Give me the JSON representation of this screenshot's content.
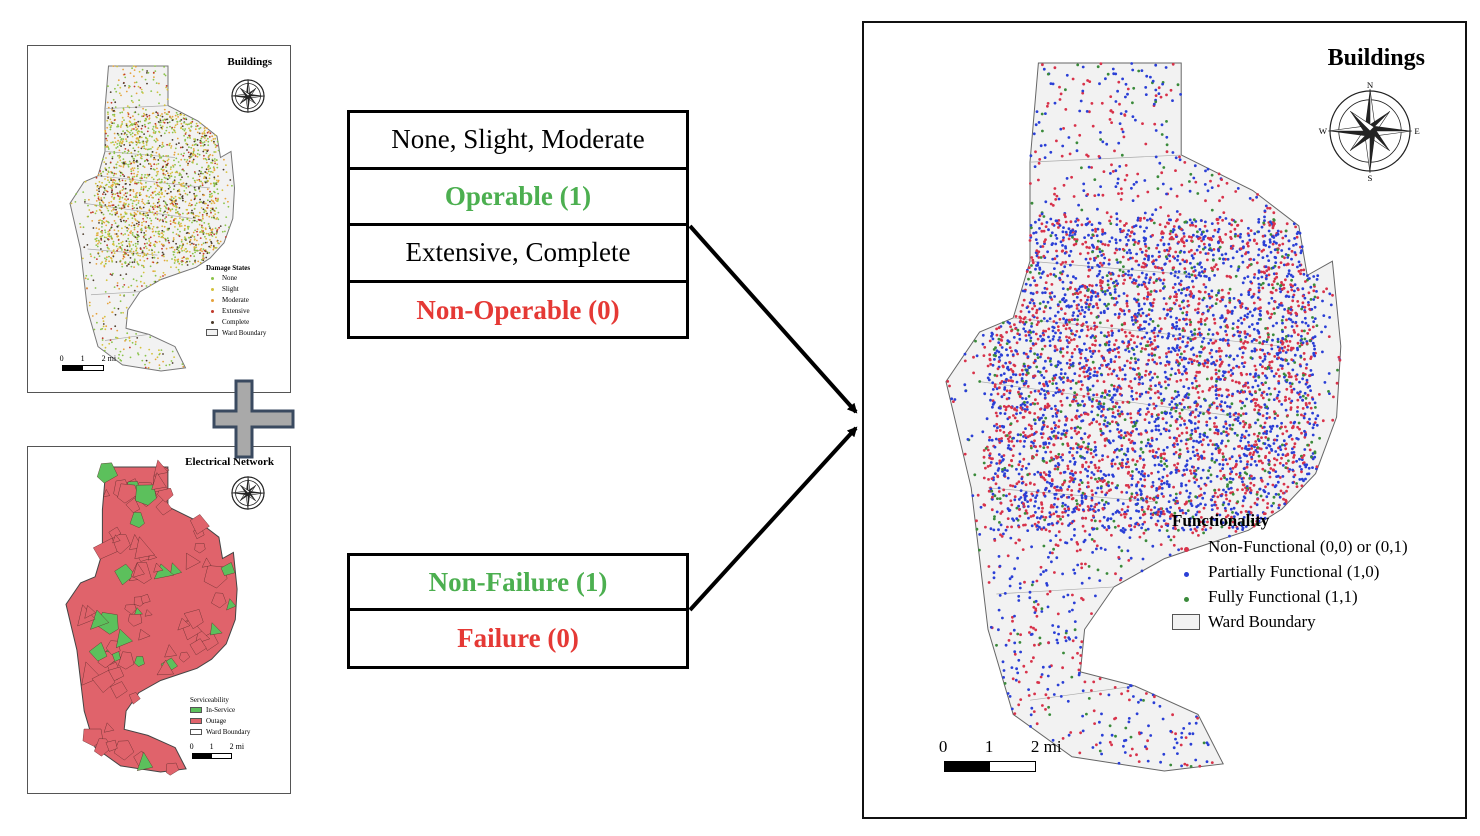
{
  "small_buildings_map": {
    "title": "Buildings",
    "legend_title": "Damage States",
    "legend_items": [
      {
        "label": "None",
        "color": "#8bc34a"
      },
      {
        "label": "Slight",
        "color": "#d4c23c"
      },
      {
        "label": "Moderate",
        "color": "#e6a23c"
      },
      {
        "label": "Extensive",
        "color": "#c0392b"
      },
      {
        "label": "Complete",
        "color": "#4a3a2a"
      },
      {
        "label": "Ward Boundary",
        "color": "#f2f2f2"
      }
    ],
    "scale": {
      "ticks": [
        "0",
        "1",
        "2 mi"
      ]
    }
  },
  "small_electrical_map": {
    "title": "Electrical Network",
    "legend_title": "Serviceability",
    "legend_items": [
      {
        "label": "In-Service",
        "color": "#5cc05c"
      },
      {
        "label": "Outage",
        "color": "#e0636b"
      },
      {
        "label": "Ward Boundary",
        "color": "#ffffff"
      }
    ],
    "scale": {
      "ticks": [
        "0",
        "1",
        "2 mi"
      ]
    }
  },
  "building_states_table": {
    "rows": [
      {
        "text": "None, Slight, Moderate",
        "style": "plain"
      },
      {
        "text": "Operable (1)",
        "style": "green"
      },
      {
        "text": "Extensive, Complete",
        "style": "plain"
      },
      {
        "text": "Non-Operable (0)",
        "style": "red"
      }
    ]
  },
  "network_states_table": {
    "rows": [
      {
        "text": "Non-Failure (1)",
        "style": "green"
      },
      {
        "text": "Failure (0)",
        "style": "red"
      }
    ]
  },
  "big_map": {
    "title": "Buildings",
    "compass": {
      "n": "N",
      "s": "S",
      "e": "E",
      "w": "W"
    },
    "legend_title": "Functionality",
    "legend_items": [
      {
        "label": "Non-Functional (0,0) or (0,1)",
        "color": "#d8324a"
      },
      {
        "label": "Partially Functional (1,0)",
        "color": "#2a3fd6"
      },
      {
        "label": "Fully Functional (1,1)",
        "color": "#3a8a3a"
      },
      {
        "label": "Ward Boundary",
        "color": "#f2f2f2"
      }
    ],
    "scale": {
      "ticks": [
        "0",
        "1",
        "2 mi"
      ]
    }
  },
  "colors": {
    "outage": "#e0636b",
    "in_service": "#5cc05c",
    "ward_fill": "#f2f2f2",
    "plus_fill": "#a9a9a9"
  }
}
